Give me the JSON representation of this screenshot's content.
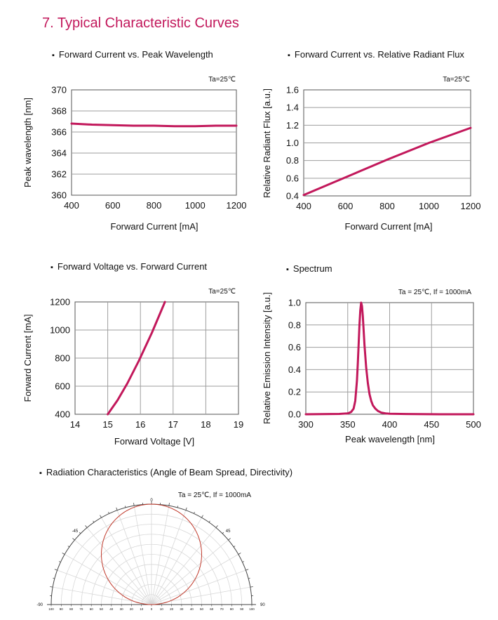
{
  "section_title": "7. Typical Characteristic Curves",
  "colors": {
    "curve": "#c2185b",
    "title": "#c2185b",
    "grid": "#9e9e9e",
    "polar_curve": "#c0392b"
  },
  "chart_data": [
    {
      "id": "c1",
      "type": "line",
      "title": "Forward Current vs. Peak Wavelength",
      "condition": "Ta=25℃",
      "xlabel": "Forward Current [mA]",
      "ylabel": "Peak wavelength [nm]",
      "xlim": [
        400,
        1200
      ],
      "ylim": [
        360,
        370
      ],
      "xticks": [
        400,
        600,
        800,
        1000,
        1200
      ],
      "yticks": [
        360,
        362,
        364,
        366,
        368,
        370
      ],
      "xtick_labels": [
        "400",
        "600",
        "800",
        "1000",
        "1200"
      ],
      "ytick_labels": [
        "360",
        "362",
        "364",
        "366",
        "368",
        "370"
      ],
      "grid": "horizontal",
      "series": [
        {
          "x": [
            400,
            500,
            600,
            700,
            800,
            900,
            1000,
            1100,
            1200
          ],
          "y": [
            366.8,
            366.7,
            366.65,
            366.6,
            366.6,
            366.55,
            366.55,
            366.6,
            366.6
          ]
        }
      ]
    },
    {
      "id": "c2",
      "type": "line",
      "title": "Forward Current vs. Relative Radiant Flux",
      "condition": "Ta=25℃",
      "xlabel": "Forward Current [mA]",
      "ylabel": "Relative Radiant Flux [a.u.]",
      "xlim": [
        400,
        1200
      ],
      "ylim": [
        0.4,
        1.6
      ],
      "xticks": [
        400,
        600,
        800,
        1000,
        1200
      ],
      "yticks": [
        0.4,
        0.6,
        0.8,
        1.0,
        1.2,
        1.4,
        1.6
      ],
      "xtick_labels": [
        "400",
        "600",
        "800",
        "1000",
        "1200"
      ],
      "ytick_labels": [
        "0.4",
        "0.6",
        "0.8",
        "1.0",
        "1.2",
        "1.4",
        "1.6"
      ],
      "grid": "horizontal",
      "series": [
        {
          "x": [
            400,
            600,
            800,
            1000,
            1200
          ],
          "y": [
            0.41,
            0.61,
            0.81,
            1.0,
            1.17
          ]
        }
      ]
    },
    {
      "id": "c3",
      "type": "line",
      "title": "Forward Voltage vs. Forward Current",
      "condition": "Ta=25℃",
      "xlabel": "Forward Voltage [V]",
      "ylabel": "Forward Current [mA]",
      "xlim": [
        14,
        19
      ],
      "ylim": [
        400,
        1200
      ],
      "xticks": [
        14,
        15,
        16,
        17,
        18,
        19
      ],
      "yticks": [
        400,
        600,
        800,
        1000,
        1200
      ],
      "xtick_labels": [
        "14",
        "15",
        "16",
        "17",
        "18",
        "19"
      ],
      "ytick_labels": [
        "400",
        "600",
        "800",
        "1000",
        "1200"
      ],
      "grid": "both",
      "series": [
        {
          "x": [
            15.0,
            15.3,
            15.6,
            15.95,
            16.35,
            16.75
          ],
          "y": [
            400,
            500,
            620,
            780,
            980,
            1200
          ]
        }
      ]
    },
    {
      "id": "c4",
      "type": "line",
      "title": "Spectrum",
      "condition": "Ta = 25℃,  If = 1000mA",
      "xlabel": "Peak wavelength [nm]",
      "ylabel": "Relative Emission Intensity [a.u.]",
      "xlim": [
        300,
        500
      ],
      "ylim": [
        0,
        1.0
      ],
      "xticks": [
        300,
        350,
        400,
        450,
        500
      ],
      "yticks": [
        0,
        0.2,
        0.4,
        0.6,
        0.8,
        1.0
      ],
      "xtick_labels": [
        "300",
        "350",
        "400",
        "450",
        "500"
      ],
      "ytick_labels": [
        "0.0",
        "0.2",
        "0.4",
        "0.6",
        "0.8",
        "1.0"
      ],
      "grid": "both",
      "series": [
        {
          "x": [
            300,
            340,
            350,
            354,
            357,
            359,
            361,
            362,
            363,
            364,
            365,
            366,
            367,
            368,
            369,
            370,
            372,
            374,
            376,
            378,
            380,
            383,
            386,
            390,
            395,
            400,
            420,
            460,
            500
          ],
          "y": [
            0,
            0.003,
            0.008,
            0.02,
            0.05,
            0.12,
            0.3,
            0.45,
            0.62,
            0.8,
            0.93,
            1.0,
            0.97,
            0.88,
            0.75,
            0.62,
            0.42,
            0.28,
            0.18,
            0.12,
            0.08,
            0.05,
            0.03,
            0.015,
            0.008,
            0.005,
            0.002,
            0,
            0
          ]
        }
      ]
    },
    {
      "id": "c5",
      "type": "polar",
      "title": "Radiation Characteristics (Angle of Beam Spread, Directivity)",
      "condition": "Ta = 25℃,  If = 1000mA",
      "rlim": [
        0,
        100
      ],
      "angle_labels": {
        "top": "0",
        "left45": "-45",
        "right45": "45",
        "left90": "-90",
        "right90": "90"
      },
      "radial_tick_labels": [
        "100",
        "90",
        "80",
        "70",
        "60",
        "50",
        "40",
        "30",
        "20",
        "10",
        "0",
        "10",
        "20",
        "30",
        "40",
        "50",
        "60",
        "70",
        "80",
        "90",
        "100"
      ],
      "series": [
        {
          "model": "cosine",
          "theta": [
            -90,
            0,
            90
          ],
          "r": [
            0,
            100,
            0
          ]
        }
      ]
    }
  ]
}
